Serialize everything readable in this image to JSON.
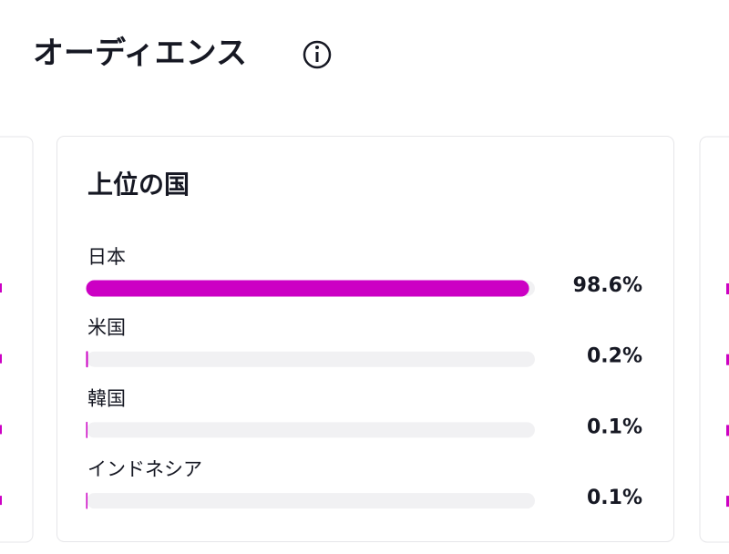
{
  "header": {
    "title": "オーディエンス"
  },
  "card": {
    "title": "上位の国",
    "categories": [
      "日本",
      "米国",
      "韓国",
      "インドネシア"
    ],
    "values": [
      98.6,
      0.2,
      0.1,
      0.1
    ],
    "value_labels": [
      "98.6%",
      "0.2%",
      "0.1%",
      "0.1%"
    ],
    "color": "#cc00c4",
    "xlim": [
      0,
      100
    ]
  }
}
